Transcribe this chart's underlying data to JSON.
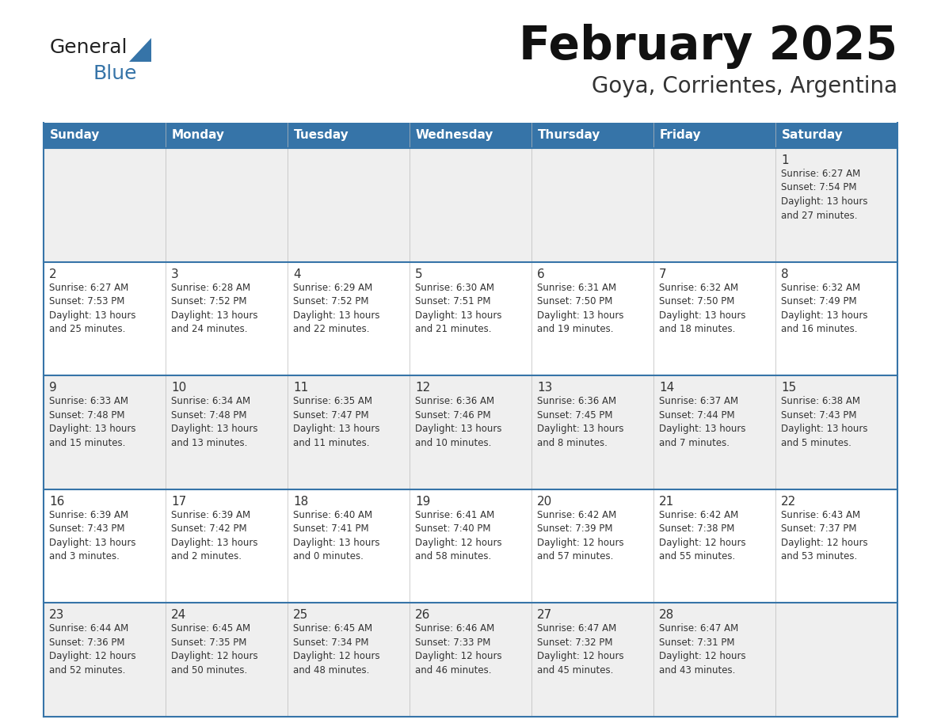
{
  "title": "February 2025",
  "subtitle": "Goya, Corrientes, Argentina",
  "header_bg": "#3674A8",
  "header_text_color": "#FFFFFF",
  "days_of_week": [
    "Sunday",
    "Monday",
    "Tuesday",
    "Wednesday",
    "Thursday",
    "Friday",
    "Saturday"
  ],
  "cell_bg_odd": "#EFEFEF",
  "cell_bg_even": "#FFFFFF",
  "cell_border_color": "#3674A8",
  "day_number_color": "#333333",
  "text_color": "#333333",
  "logo_general_color": "#222222",
  "logo_blue_color": "#3674A8",
  "logo_triangle_color": "#3674A8",
  "weeks": [
    [
      {
        "day": "",
        "info": ""
      },
      {
        "day": "",
        "info": ""
      },
      {
        "day": "",
        "info": ""
      },
      {
        "day": "",
        "info": ""
      },
      {
        "day": "",
        "info": ""
      },
      {
        "day": "",
        "info": ""
      },
      {
        "day": "1",
        "info": "Sunrise: 6:27 AM\nSunset: 7:54 PM\nDaylight: 13 hours\nand 27 minutes."
      }
    ],
    [
      {
        "day": "2",
        "info": "Sunrise: 6:27 AM\nSunset: 7:53 PM\nDaylight: 13 hours\nand 25 minutes."
      },
      {
        "day": "3",
        "info": "Sunrise: 6:28 AM\nSunset: 7:52 PM\nDaylight: 13 hours\nand 24 minutes."
      },
      {
        "day": "4",
        "info": "Sunrise: 6:29 AM\nSunset: 7:52 PM\nDaylight: 13 hours\nand 22 minutes."
      },
      {
        "day": "5",
        "info": "Sunrise: 6:30 AM\nSunset: 7:51 PM\nDaylight: 13 hours\nand 21 minutes."
      },
      {
        "day": "6",
        "info": "Sunrise: 6:31 AM\nSunset: 7:50 PM\nDaylight: 13 hours\nand 19 minutes."
      },
      {
        "day": "7",
        "info": "Sunrise: 6:32 AM\nSunset: 7:50 PM\nDaylight: 13 hours\nand 18 minutes."
      },
      {
        "day": "8",
        "info": "Sunrise: 6:32 AM\nSunset: 7:49 PM\nDaylight: 13 hours\nand 16 minutes."
      }
    ],
    [
      {
        "day": "9",
        "info": "Sunrise: 6:33 AM\nSunset: 7:48 PM\nDaylight: 13 hours\nand 15 minutes."
      },
      {
        "day": "10",
        "info": "Sunrise: 6:34 AM\nSunset: 7:48 PM\nDaylight: 13 hours\nand 13 minutes."
      },
      {
        "day": "11",
        "info": "Sunrise: 6:35 AM\nSunset: 7:47 PM\nDaylight: 13 hours\nand 11 minutes."
      },
      {
        "day": "12",
        "info": "Sunrise: 6:36 AM\nSunset: 7:46 PM\nDaylight: 13 hours\nand 10 minutes."
      },
      {
        "day": "13",
        "info": "Sunrise: 6:36 AM\nSunset: 7:45 PM\nDaylight: 13 hours\nand 8 minutes."
      },
      {
        "day": "14",
        "info": "Sunrise: 6:37 AM\nSunset: 7:44 PM\nDaylight: 13 hours\nand 7 minutes."
      },
      {
        "day": "15",
        "info": "Sunrise: 6:38 AM\nSunset: 7:43 PM\nDaylight: 13 hours\nand 5 minutes."
      }
    ],
    [
      {
        "day": "16",
        "info": "Sunrise: 6:39 AM\nSunset: 7:43 PM\nDaylight: 13 hours\nand 3 minutes."
      },
      {
        "day": "17",
        "info": "Sunrise: 6:39 AM\nSunset: 7:42 PM\nDaylight: 13 hours\nand 2 minutes."
      },
      {
        "day": "18",
        "info": "Sunrise: 6:40 AM\nSunset: 7:41 PM\nDaylight: 13 hours\nand 0 minutes."
      },
      {
        "day": "19",
        "info": "Sunrise: 6:41 AM\nSunset: 7:40 PM\nDaylight: 12 hours\nand 58 minutes."
      },
      {
        "day": "20",
        "info": "Sunrise: 6:42 AM\nSunset: 7:39 PM\nDaylight: 12 hours\nand 57 minutes."
      },
      {
        "day": "21",
        "info": "Sunrise: 6:42 AM\nSunset: 7:38 PM\nDaylight: 12 hours\nand 55 minutes."
      },
      {
        "day": "22",
        "info": "Sunrise: 6:43 AM\nSunset: 7:37 PM\nDaylight: 12 hours\nand 53 minutes."
      }
    ],
    [
      {
        "day": "23",
        "info": "Sunrise: 6:44 AM\nSunset: 7:36 PM\nDaylight: 12 hours\nand 52 minutes."
      },
      {
        "day": "24",
        "info": "Sunrise: 6:45 AM\nSunset: 7:35 PM\nDaylight: 12 hours\nand 50 minutes."
      },
      {
        "day": "25",
        "info": "Sunrise: 6:45 AM\nSunset: 7:34 PM\nDaylight: 12 hours\nand 48 minutes."
      },
      {
        "day": "26",
        "info": "Sunrise: 6:46 AM\nSunset: 7:33 PM\nDaylight: 12 hours\nand 46 minutes."
      },
      {
        "day": "27",
        "info": "Sunrise: 6:47 AM\nSunset: 7:32 PM\nDaylight: 12 hours\nand 45 minutes."
      },
      {
        "day": "28",
        "info": "Sunrise: 6:47 AM\nSunset: 7:31 PM\nDaylight: 12 hours\nand 43 minutes."
      },
      {
        "day": "",
        "info": ""
      }
    ]
  ]
}
